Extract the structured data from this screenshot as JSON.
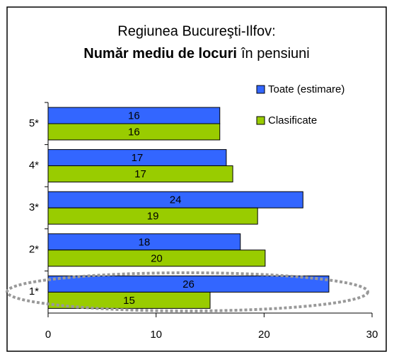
{
  "chart_data": {
    "type": "hbar",
    "title": {
      "line1": "Regiunea Bucureşti-Ilfov:",
      "bold": "Număr mediu de locuri",
      "rest": "în pensiuni"
    },
    "categories": [
      "1*",
      "2*",
      "3*",
      "4*",
      "5*"
    ],
    "series": [
      {
        "name": "Toate (estimare)",
        "color": "#3366ff",
        "values": [
          26,
          17.8,
          23.6,
          16.5,
          15.9
        ],
        "value_labels": [
          "26",
          "18",
          "24",
          "17",
          "16"
        ]
      },
      {
        "name": "Clasificate",
        "color": "#99cc00",
        "values": [
          15,
          20.1,
          19.4,
          17.1,
          15.9
        ],
        "value_labels": [
          "15",
          "20",
          "19",
          "17",
          "16"
        ]
      }
    ],
    "xlim": [
      0,
      30
    ],
    "xticks": [
      0,
      10,
      20,
      30
    ],
    "grid": false,
    "legend": "right"
  }
}
